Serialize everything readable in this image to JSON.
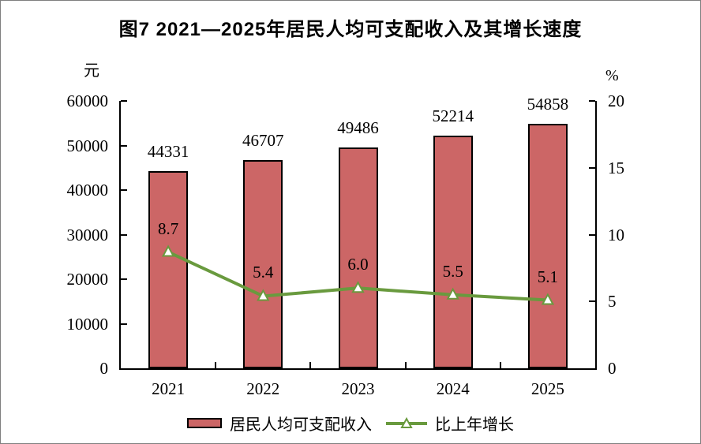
{
  "chart_data": {
    "type": "bar+line",
    "title": "图7  2021—2025年居民人均可支配收入及其增长速度",
    "categories": [
      "2021",
      "2022",
      "2023",
      "2024",
      "2025"
    ],
    "series": [
      {
        "name": "居民人均可支配收入",
        "type": "bar",
        "axis": "left",
        "values": [
          44331,
          46707,
          49486,
          52214,
          54858
        ],
        "fill_color": "#CC6666",
        "border_color": "#000000"
      },
      {
        "name": "比上年增长",
        "type": "line",
        "axis": "right",
        "values": [
          8.7,
          5.4,
          6.0,
          5.5,
          5.1
        ],
        "line_color": "#699A3E",
        "marker": "triangle-up",
        "marker_fill": "#FFFFFF"
      }
    ],
    "left_axis": {
      "unit": "元",
      "min": 0,
      "max": 60000,
      "ticks": [
        0,
        10000,
        20000,
        30000,
        40000,
        50000,
        60000
      ]
    },
    "right_axis": {
      "unit": "%",
      "min": 0,
      "max": 20,
      "ticks": [
        0,
        5,
        10,
        15,
        20
      ]
    },
    "grid": "off",
    "legend_position": "bottom"
  }
}
